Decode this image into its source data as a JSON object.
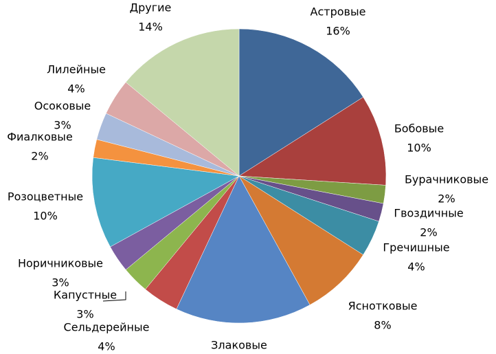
{
  "chart_data": {
    "type": "pie",
    "categories": [
      "Астровые",
      "Бобовые",
      "Бурачниковые",
      "Гвоздичные",
      "Гречишные",
      "Яснотковые",
      "Злаковые",
      "Сельдерейные",
      "Капустные",
      "Норичниковые",
      "Розоцветные",
      "Фиалковые",
      "Осоковые",
      "Лилейные",
      "Другие"
    ],
    "values": [
      16,
      10,
      2,
      2,
      4,
      8,
      15,
      4,
      3,
      3,
      10,
      2,
      3,
      4,
      14
    ],
    "value_labels": [
      "16%",
      "10%",
      "2%",
      "2%",
      "4%",
      "8%",
      null,
      "4%",
      "3%",
      "3%",
      "10%",
      "2%",
      "3%",
      "4%",
      "14%"
    ],
    "colors": [
      "#3F6797",
      "#A9403D",
      "#7D9C43",
      "#67508A",
      "#3C8DA4",
      "#D47A33",
      "#5685C4",
      "#C24C49",
      "#8DB54E",
      "#7B5EA0",
      "#46A9C5",
      "#F4923F",
      "#A8BADB",
      "#DCA8A7",
      "#C5D7AB"
    ]
  }
}
